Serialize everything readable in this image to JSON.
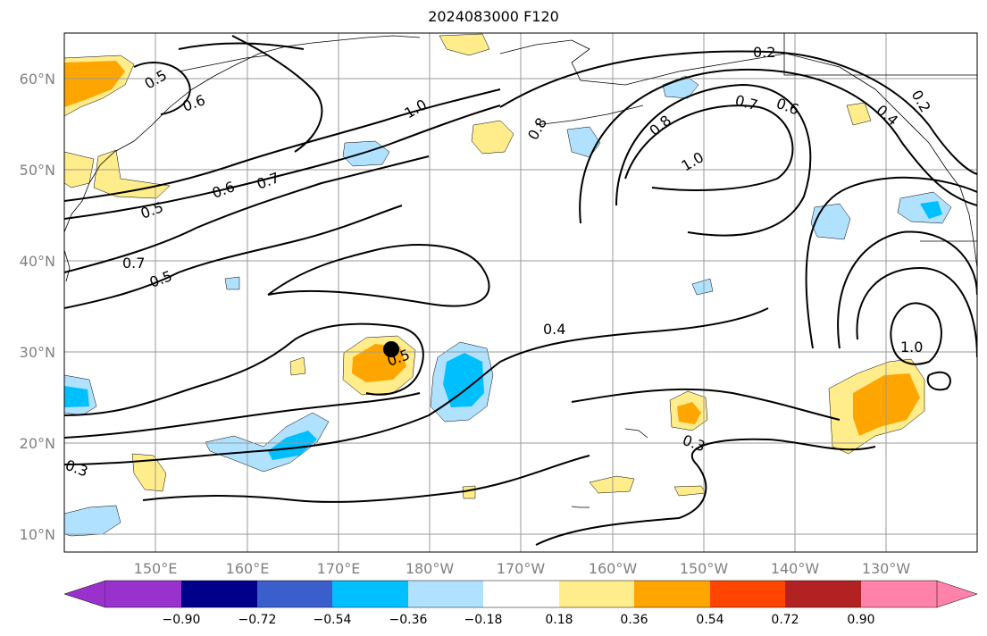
{
  "title": "2024083000 F120",
  "map": {
    "lat_ticks": [
      "60°N",
      "50°N",
      "40°N",
      "30°N",
      "20°N",
      "10°N"
    ],
    "lon_ticks": [
      "150°E",
      "160°E",
      "170°E",
      "180°W",
      "170°W",
      "160°W",
      "150°W",
      "140°W",
      "130°W"
    ],
    "contour_labels": [
      "0.2",
      "0.2",
      "0.3",
      "0.4",
      "0.5",
      "0.5",
      "0.5",
      "0.6",
      "0.6",
      "0.6",
      "0.7",
      "0.7",
      "0.7",
      "0.8",
      "0.8",
      "1.0",
      "1.0",
      "1.0",
      "0.4",
      "0.3",
      "0.5"
    ],
    "storm_marker": "black-circle"
  },
  "colorbar": {
    "labels": [
      "−0.90",
      "−0.72",
      "−0.54",
      "−0.36",
      "−0.18",
      "0.18",
      "0.36",
      "0.54",
      "0.72",
      "0.90"
    ],
    "colors": [
      "#9932cc",
      "#00008b",
      "#3a5fcd",
      "#00bfff",
      "#b0e2ff",
      "#ffffff",
      "#ffec8b",
      "#ffa500",
      "#ff4500",
      "#b22222",
      "#ff82ab"
    ]
  }
}
